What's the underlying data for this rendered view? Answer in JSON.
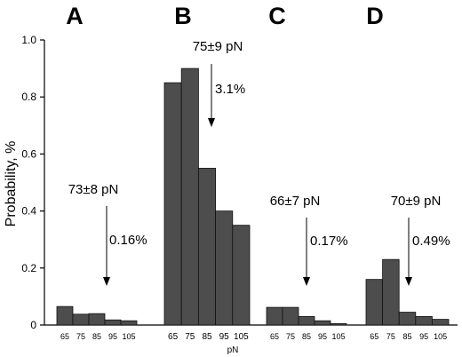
{
  "chart_data": {
    "type": "bar",
    "ylabel": "Probability, %",
    "xlabel": "pN",
    "ylim": [
      0,
      1.0
    ],
    "yticks": [
      "0",
      "0.2",
      "0.4",
      "0.6",
      "0.8",
      "1.0"
    ],
    "categories": [
      "65",
      "75",
      "85",
      "95",
      "105"
    ],
    "bar_color": "#4d4d4d",
    "panels": [
      {
        "letter": "A",
        "values": [
          0.065,
          0.038,
          0.04,
          0.018,
          0.015
        ],
        "force": "73±8 pN",
        "percent": "0.16%"
      },
      {
        "letter": "B",
        "values": [
          0.85,
          0.9,
          0.55,
          0.4,
          0.35
        ],
        "force": "75±9 pN",
        "percent": "3.1%"
      },
      {
        "letter": "C",
        "values": [
          0.062,
          0.062,
          0.03,
          0.015,
          0.005
        ],
        "force": "66±7 pN",
        "percent": "0.17%"
      },
      {
        "letter": "D",
        "values": [
          0.16,
          0.23,
          0.045,
          0.03,
          0.02
        ],
        "force": "70±9 pN",
        "percent": "0.49%"
      }
    ]
  }
}
